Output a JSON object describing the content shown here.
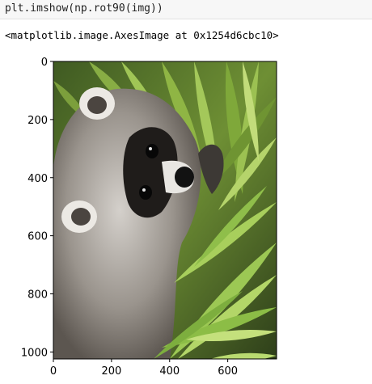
{
  "cell": {
    "code": "plt.imshow(np.rot90(img))",
    "output_repr": "<matplotlib.image.AxesImage at 0x1254d6cbc10>"
  },
  "chart_data": {
    "type": "image",
    "image_subject": "raccoon-among-palm-fronds",
    "x_ticks": [
      "0",
      "200",
      "400",
      "600"
    ],
    "y_ticks": [
      "0",
      "200",
      "400",
      "600",
      "800",
      "1000"
    ],
    "x_tick_values": [
      0,
      200,
      400,
      600
    ],
    "y_tick_values": [
      0,
      200,
      400,
      600,
      800,
      1000
    ],
    "xlim": [
      0,
      768
    ],
    "ylim": [
      1024,
      0
    ],
    "title": "",
    "xlabel": "",
    "ylabel": ""
  }
}
